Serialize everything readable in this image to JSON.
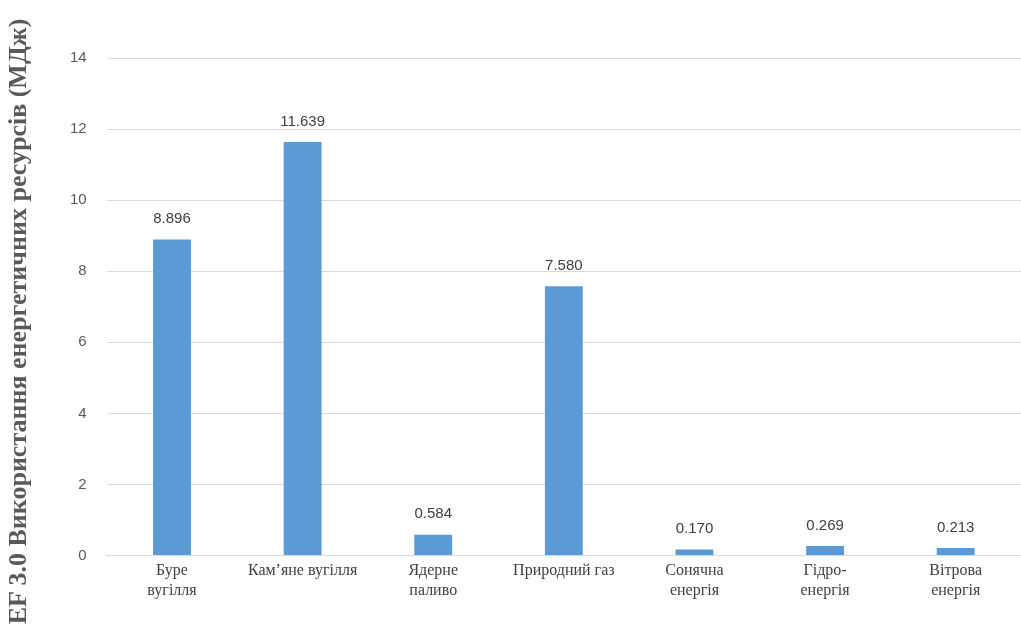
{
  "chart_data": {
    "type": "bar",
    "ylabel": "EF 3.0 Використання енергетичних ресурсів (МДж)",
    "categories": [
      "Буре\nвугілля",
      "Кам’яне вугілля",
      "Ядерне\nпаливо",
      "Природний газ",
      "Сонячна\nенергія",
      "Гідро-\nенергія",
      "Вітрова\nенергія"
    ],
    "values": [
      8.896,
      11.639,
      0.584,
      7.58,
      0.17,
      0.269,
      0.213
    ],
    "value_labels": [
      "8.896",
      "11.639",
      "0.584",
      "7.580",
      "0.170",
      "0.269",
      "0.213"
    ],
    "color": "#5b9bd5",
    "ylim": [
      0,
      14
    ],
    "yticks": [
      0,
      2,
      4,
      6,
      8,
      10,
      12,
      14
    ],
    "grid": "y"
  }
}
